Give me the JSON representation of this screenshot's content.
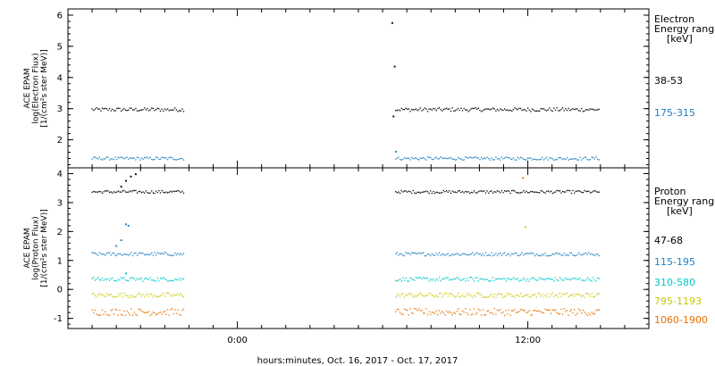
{
  "x_axis": {
    "label": "hours:minutes, Oct. 16, 2017 - Oct. 17, 2017"
  },
  "chart_data": [
    {
      "type": "scatter",
      "panel": "electron",
      "ylabel": [
        "ACE EPAM",
        "log(Electron Flux)",
        "[1/(cm²s ster MeV)]"
      ],
      "legend_title": [
        "Electron",
        "Energy ranges",
        "[keV]"
      ],
      "xlim": [
        -7,
        17
      ],
      "ylim": [
        1.1,
        6.2
      ],
      "yticks": [
        2,
        3,
        4,
        5,
        6
      ],
      "xticks": [
        {
          "x": 0,
          "label": "0:00"
        },
        {
          "x": 12,
          "label": "12:00"
        }
      ],
      "gaps": [
        [
          -2.2,
          6.5
        ]
      ],
      "series": [
        {
          "name": "38-53",
          "color": "#000000",
          "base": 2.97,
          "noise": 0.06,
          "extra_points": [
            {
              "x": 6.4,
              "y": 5.75
            },
            {
              "x": 6.5,
              "y": 4.35
            },
            {
              "x": 6.45,
              "y": 2.75
            }
          ]
        },
        {
          "name": "175-315",
          "color": "#1f7fc0",
          "base": 1.4,
          "noise": 0.05,
          "extra_points": [
            {
              "x": 6.55,
              "y": 1.62
            }
          ]
        }
      ]
    },
    {
      "type": "scatter",
      "panel": "proton",
      "ylabel": [
        "ACE EPAM",
        "log(Proton Flux)",
        "[1/(cm²s ster MeV)]"
      ],
      "legend_title": [
        "Proton",
        "Energy ranges",
        "[keV]"
      ],
      "xlim": [
        -7,
        17
      ],
      "ylim": [
        -1.35,
        4.2
      ],
      "yticks": [
        -1,
        0,
        1,
        2,
        3,
        4
      ],
      "xticks": [
        {
          "x": 0,
          "label": "0:00"
        },
        {
          "x": 12,
          "label": "12:00"
        }
      ],
      "gaps": [
        [
          -2.2,
          6.5
        ]
      ],
      "series": [
        {
          "name": "47-68",
          "color": "#000000",
          "base": 3.37,
          "noise": 0.05,
          "extra_points": [
            {
              "x": -4.8,
              "y": 3.55
            },
            {
              "x": -4.6,
              "y": 3.75
            },
            {
              "x": -4.4,
              "y": 3.9
            },
            {
              "x": -4.2,
              "y": 3.98
            }
          ]
        },
        {
          "name": "115-195",
          "color": "#1f7fc0",
          "base": 1.22,
          "noise": 0.06,
          "extra_points": [
            {
              "x": -5.0,
              "y": 1.5
            },
            {
              "x": -4.8,
              "y": 1.7
            },
            {
              "x": -4.6,
              "y": 2.25
            },
            {
              "x": -4.5,
              "y": 2.2
            }
          ]
        },
        {
          "name": "310-580",
          "color": "#00c8c8",
          "base": 0.35,
          "noise": 0.07,
          "extra_points": [
            {
              "x": -4.6,
              "y": 0.55
            }
          ]
        },
        {
          "name": "795-1193",
          "color": "#c8c800",
          "base": -0.2,
          "noise": 0.08,
          "extra_points": [
            {
              "x": 11.9,
              "y": 2.15
            }
          ]
        },
        {
          "name": "1060-1900",
          "color": "#e87000",
          "base": -0.78,
          "noise": 0.12,
          "extra_points": [
            {
              "x": 11.8,
              "y": 3.85
            }
          ]
        }
      ]
    }
  ]
}
